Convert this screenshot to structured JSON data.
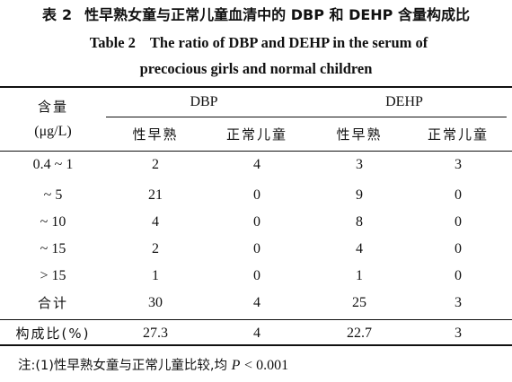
{
  "title": {
    "zh_prefix": "表",
    "zh_number": "2",
    "zh_text": "性早熟女童与正常儿童血清中的 DBP 和 DEHP 含量构成比",
    "en_prefix": "Table 2",
    "en_line1": "The ratio of DBP and DEHP in the serum of",
    "en_line2": "precocious girls and normal children"
  },
  "header": {
    "row_label_line1": "含量",
    "row_label_line2": "(μg/L)",
    "groups": [
      "DBP",
      "DEHP"
    ],
    "subcolumns": [
      "性早熟",
      "正常儿童",
      "性早熟",
      "正常儿童"
    ]
  },
  "rows": [
    {
      "label": "0.4 ~ 1",
      "values": [
        "2",
        "4",
        "3",
        "3"
      ]
    },
    {
      "label": "~ 5",
      "values": [
        "21",
        "0",
        "9",
        "0"
      ]
    },
    {
      "label": "~ 10",
      "values": [
        "4",
        "0",
        "8",
        "0"
      ]
    },
    {
      "label": "~ 15",
      "values": [
        "2",
        "0",
        "4",
        "0"
      ]
    },
    {
      "label": "> 15",
      "values": [
        "1",
        "0",
        "1",
        "0"
      ]
    },
    {
      "label": "合计",
      "values": [
        "30",
        "4",
        "25",
        "3"
      ]
    },
    {
      "label": "构成比(%)",
      "values": [
        "27.3",
        "4",
        "22.7",
        "3"
      ]
    }
  ],
  "note": {
    "text": "注:(1)性早熟女童与正常儿童比较,均",
    "p_symbol": "P",
    "p_value": "< 0.001"
  }
}
